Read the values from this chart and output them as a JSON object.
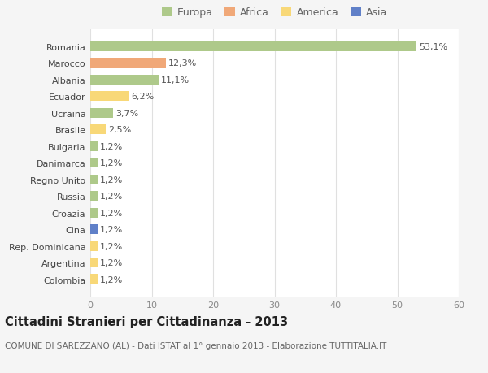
{
  "countries": [
    "Romania",
    "Marocco",
    "Albania",
    "Ecuador",
    "Ucraina",
    "Brasile",
    "Bulgaria",
    "Danimarca",
    "Regno Unito",
    "Russia",
    "Croazia",
    "Cina",
    "Rep. Dominicana",
    "Argentina",
    "Colombia"
  ],
  "values": [
    53.1,
    12.3,
    11.1,
    6.2,
    3.7,
    2.5,
    1.2,
    1.2,
    1.2,
    1.2,
    1.2,
    1.2,
    1.2,
    1.2,
    1.2
  ],
  "labels": [
    "53,1%",
    "12,3%",
    "11,1%",
    "6,2%",
    "3,7%",
    "2,5%",
    "1,2%",
    "1,2%",
    "1,2%",
    "1,2%",
    "1,2%",
    "1,2%",
    "1,2%",
    "1,2%",
    "1,2%"
  ],
  "colors": [
    "#aec98a",
    "#f0a878",
    "#aec98a",
    "#f8d878",
    "#aec98a",
    "#f8d878",
    "#aec98a",
    "#aec98a",
    "#aec98a",
    "#aec98a",
    "#aec98a",
    "#6080c8",
    "#f8d878",
    "#f8d878",
    "#f8d878"
  ],
  "legend_labels": [
    "Europa",
    "Africa",
    "America",
    "Asia"
  ],
  "legend_colors": [
    "#aec98a",
    "#f0a878",
    "#f8d878",
    "#6080c8"
  ],
  "title": "Cittadini Stranieri per Cittadinanza - 2013",
  "subtitle": "COMUNE DI SAREZZANO (AL) - Dati ISTAT al 1° gennaio 2013 - Elaborazione TUTTITALIA.IT",
  "xlim": [
    0,
    60
  ],
  "xticks": [
    0,
    10,
    20,
    30,
    40,
    50,
    60
  ],
  "bg_color": "#f5f5f5",
  "plot_bg_color": "#ffffff",
  "grid_color": "#e0e0e0",
  "bar_height": 0.6,
  "title_fontsize": 10.5,
  "subtitle_fontsize": 7.5,
  "label_fontsize": 8,
  "tick_fontsize": 8,
  "legend_fontsize": 9
}
